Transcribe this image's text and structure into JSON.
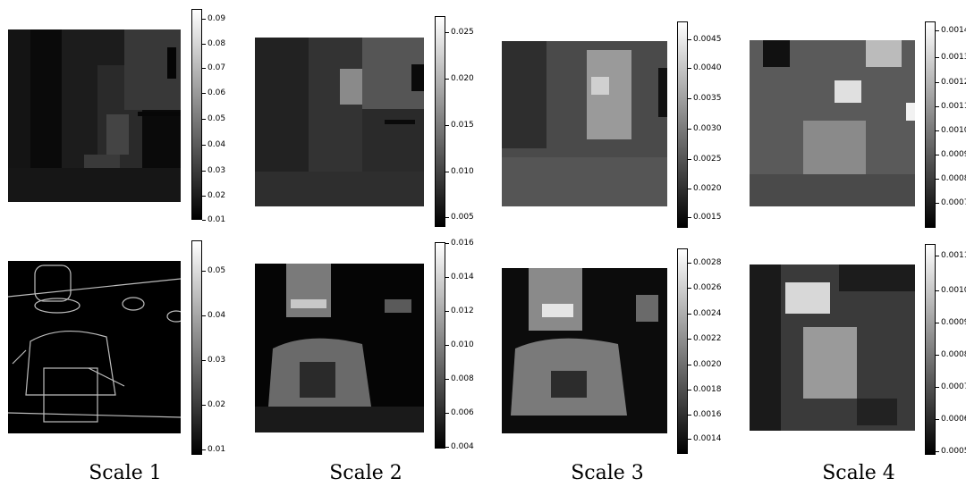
{
  "columns": [
    {
      "label": "Scale 1",
      "rows": [
        {
          "colorbar_ticks": [
            "0.09",
            "0.08",
            "0.07",
            "0.06",
            "0.05",
            "0.04",
            "0.03",
            "0.02",
            "0.01"
          ]
        },
        {
          "colorbar_ticks": [
            "0.05",
            "0.04",
            "0.03",
            "0.02",
            "0.01"
          ]
        }
      ]
    },
    {
      "label": "Scale 2",
      "rows": [
        {
          "colorbar_ticks": [
            "0.025",
            "0.020",
            "0.015",
            "0.010",
            "0.005"
          ]
        },
        {
          "colorbar_ticks": [
            "0.016",
            "0.014",
            "0.012",
            "0.010",
            "0.008",
            "0.006",
            "0.004"
          ]
        }
      ]
    },
    {
      "label": "Scale 3",
      "rows": [
        {
          "colorbar_ticks": [
            "0.0045",
            "0.0040",
            "0.0035",
            "0.0030",
            "0.0025",
            "0.0020",
            "0.0015"
          ]
        },
        {
          "colorbar_ticks": [
            "0.0028",
            "0.0026",
            "0.0024",
            "0.0022",
            "0.0020",
            "0.0018",
            "0.0016",
            "0.0014"
          ]
        }
      ]
    },
    {
      "label": "Scale 4",
      "rows": [
        {
          "colorbar_ticks": [
            "0.0014",
            "0.0013",
            "0.0012",
            "0.0011",
            "0.0010",
            "0.0009",
            "0.0008",
            "0.0007"
          ]
        },
        {
          "colorbar_ticks": [
            "0.0011",
            "0.0010",
            "0.0009",
            "0.0008",
            "0.0007",
            "0.0006",
            "0.0005"
          ]
        }
      ]
    }
  ]
}
